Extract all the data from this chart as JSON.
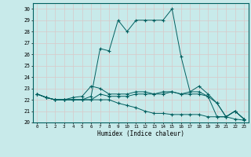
{
  "xlabel": "Humidex (Indice chaleur)",
  "xlim": [
    -0.5,
    23.5
  ],
  "ylim": [
    20,
    30.5
  ],
  "yticks": [
    20,
    21,
    22,
    23,
    24,
    25,
    26,
    27,
    28,
    29,
    30
  ],
  "xticks": [
    0,
    1,
    2,
    3,
    4,
    5,
    6,
    7,
    8,
    9,
    10,
    11,
    12,
    13,
    14,
    15,
    16,
    17,
    18,
    19,
    20,
    21,
    22,
    23
  ],
  "bg_color": "#c8eaea",
  "grid_color": "#b0d0d0",
  "line_color": "#006060",
  "lines": [
    [
      22.5,
      22.2,
      22.0,
      22.0,
      22.0,
      22.0,
      22.3,
      26.5,
      26.3,
      29.0,
      28.0,
      29.0,
      29.0,
      29.0,
      29.0,
      30.0,
      25.8,
      22.7,
      23.2,
      22.5,
      21.7,
      20.5,
      21.0,
      20.3
    ],
    [
      22.5,
      22.2,
      22.0,
      22.0,
      22.0,
      22.0,
      22.0,
      22.5,
      22.3,
      22.3,
      22.3,
      22.5,
      22.5,
      22.5,
      22.5,
      22.7,
      22.5,
      22.5,
      22.5,
      22.3,
      20.5,
      20.5,
      21.0,
      20.3
    ],
    [
      22.5,
      22.2,
      22.0,
      22.0,
      22.0,
      22.0,
      22.0,
      22.0,
      22.0,
      21.7,
      21.5,
      21.3,
      21.0,
      20.8,
      20.8,
      20.7,
      20.7,
      20.7,
      20.7,
      20.5,
      20.5,
      20.5,
      20.3,
      20.2
    ],
    [
      22.5,
      22.2,
      22.0,
      22.0,
      22.2,
      22.3,
      23.2,
      23.0,
      22.5,
      22.5,
      22.5,
      22.7,
      22.7,
      22.5,
      22.7,
      22.7,
      22.5,
      22.7,
      22.7,
      22.3,
      21.7,
      20.5,
      21.0,
      20.3
    ]
  ]
}
